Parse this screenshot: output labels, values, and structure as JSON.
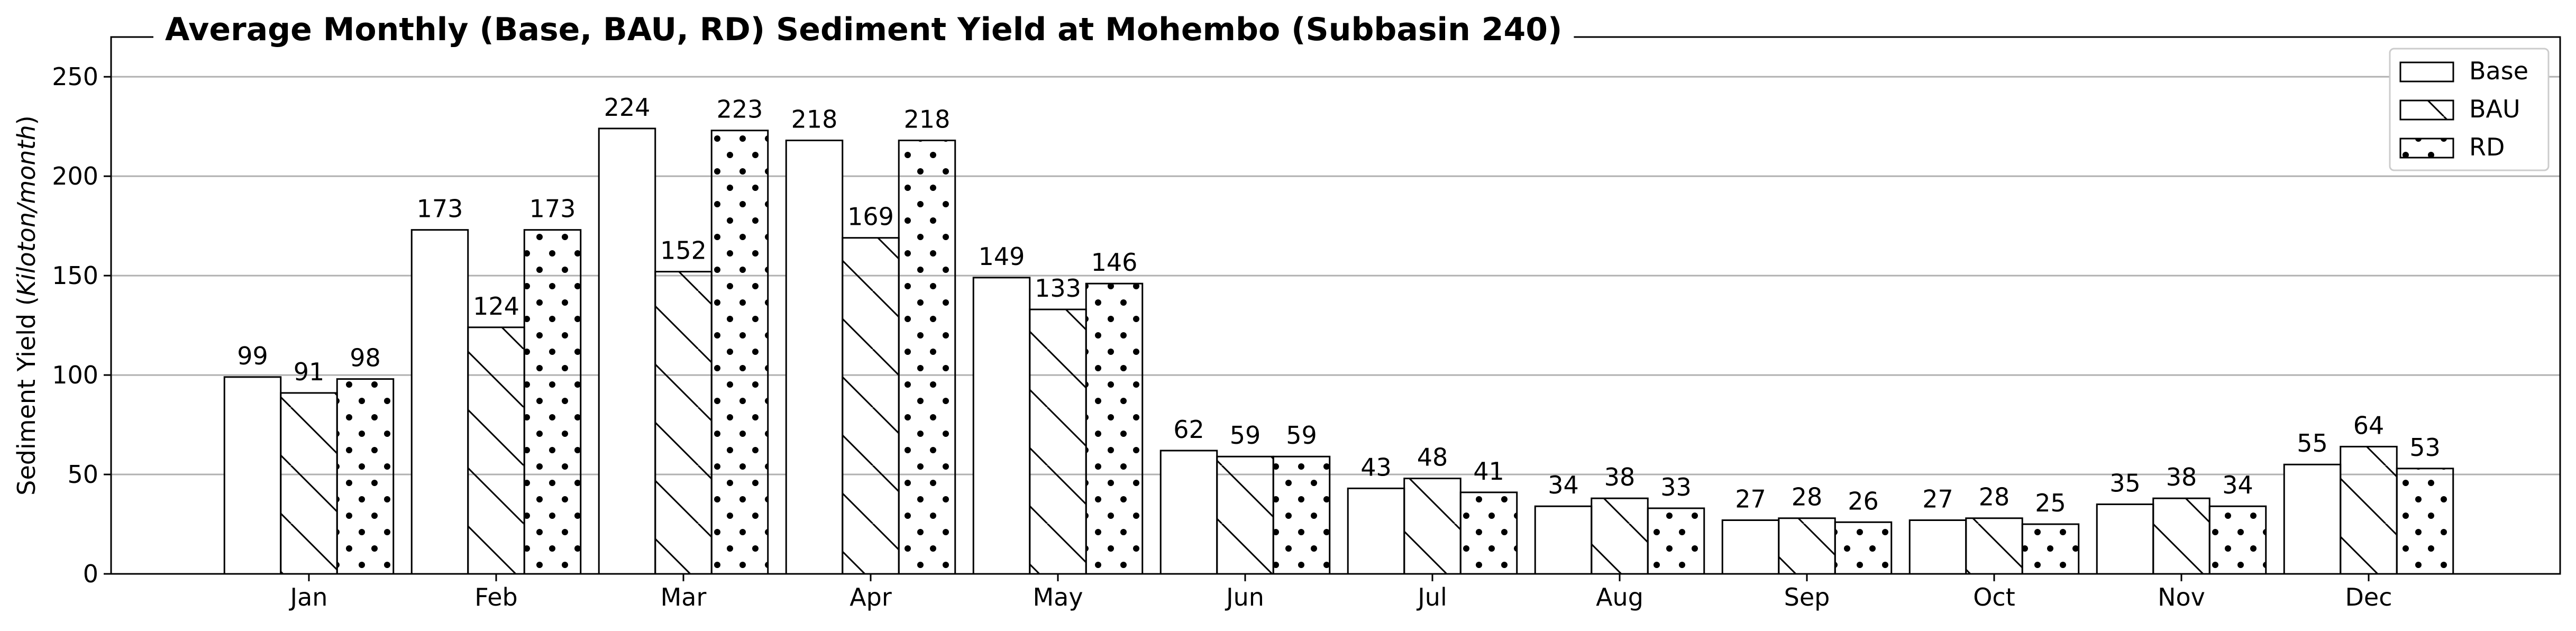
{
  "chart_data": {
    "type": "bar",
    "title": "Average Monthly (Base, BAU, RD) Sediment Yield at Mohembo (Subbasin 240)",
    "xlabel": "",
    "ylabel_prefix": "Sediment Yield (",
    "ylabel_unit": "Kiloton/month",
    "ylabel_suffix": ")",
    "ylim": [
      0,
      270
    ],
    "yticks": [
      0,
      50,
      100,
      150,
      200,
      250
    ],
    "grid": "horizontal",
    "legend_position": "top-right",
    "categories": [
      "Jan",
      "Feb",
      "Mar",
      "Apr",
      "May",
      "Jun",
      "Jul",
      "Aug",
      "Sep",
      "Oct",
      "Nov",
      "Dec"
    ],
    "series": [
      {
        "name": "Base",
        "pattern": "none",
        "values": [
          99,
          173,
          224,
          218,
          149,
          62,
          43,
          34,
          27,
          27,
          35,
          55
        ]
      },
      {
        "name": "BAU",
        "pattern": "diagonal",
        "values": [
          91,
          124,
          152,
          169,
          133,
          59,
          48,
          38,
          28,
          28,
          38,
          64
        ]
      },
      {
        "name": "RD",
        "pattern": "dots",
        "values": [
          98,
          173,
          223,
          218,
          146,
          59,
          41,
          33,
          26,
          25,
          34,
          53
        ]
      }
    ],
    "colors": {
      "bar_fill": "#ffffff",
      "edge": "#000000",
      "grid": "#b0b0b0"
    }
  }
}
